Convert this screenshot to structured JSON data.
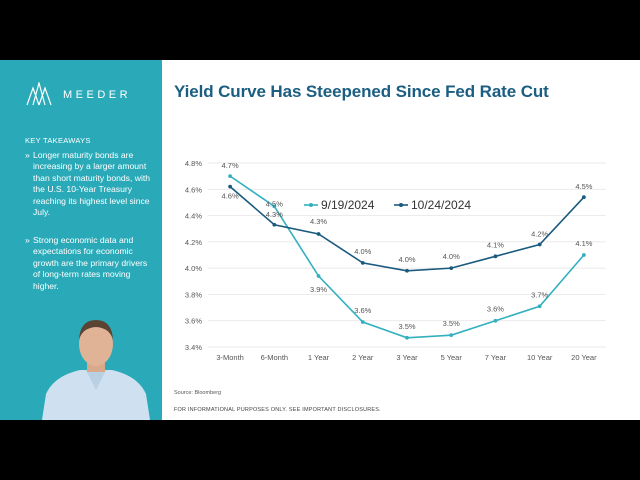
{
  "brand": {
    "name": "MEEDER"
  },
  "sidebar": {
    "heading": "KEY TAKEAWAYS",
    "bullet_marker": "»",
    "bullets": [
      "Longer maturity bonds are increasing by a larger amount than short maturity bonds, with the U.S. 10-Year Treasury reaching its highest level since July.",
      "Strong economic data and expectations for economic growth are the primary drivers of long-term rates moving higher."
    ]
  },
  "slide": {
    "title": "Yield Curve Has Steepened Since Fed Rate Cut",
    "source": "Source: Bloomberg",
    "disclaimer": "FOR INFORMATIONAL PURPOSES ONLY. SEE IMPORTANT DISCLOSURES."
  },
  "colors": {
    "sidebar": "#2aaab8",
    "title": "#1b5e82",
    "series_1": "#33b0c0",
    "series_2": "#1a5a7e"
  },
  "chart_data": {
    "type": "line",
    "categories": [
      "3-Month",
      "6-Month",
      "1 Year",
      "2 Year",
      "3 Year",
      "5 Year",
      "7 Year",
      "10 Year",
      "20 Year"
    ],
    "series": [
      {
        "name": "9/19/2024",
        "values": [
          4.7,
          4.47,
          3.94,
          3.59,
          3.47,
          3.49,
          3.6,
          3.71,
          4.1
        ],
        "labels": [
          "4.7%",
          "4.5%",
          "3.9%",
          "3.6%",
          "3.5%",
          "3.5%",
          "3.6%",
          "3.7%",
          "4.1%"
        ]
      },
      {
        "name": "10/24/2024",
        "values": [
          4.62,
          4.33,
          4.26,
          4.04,
          3.98,
          4.0,
          4.09,
          4.18,
          4.54
        ],
        "labels": [
          "4.6%",
          "4.3%",
          "4.3%",
          "4.0%",
          "4.0%",
          "4.0%",
          "4.1%",
          "4.2%",
          "4.5%"
        ]
      }
    ],
    "ylim": [
      3.4,
      4.8
    ],
    "yticks": [
      "3.4%",
      "3.6%",
      "3.8%",
      "4.0%",
      "4.2%",
      "4.4%",
      "4.6%",
      "4.8%"
    ],
    "ytick_values": [
      3.4,
      3.6,
      3.8,
      4.0,
      4.2,
      4.4,
      4.6,
      4.8
    ],
    "grid": true,
    "legend": "top"
  }
}
